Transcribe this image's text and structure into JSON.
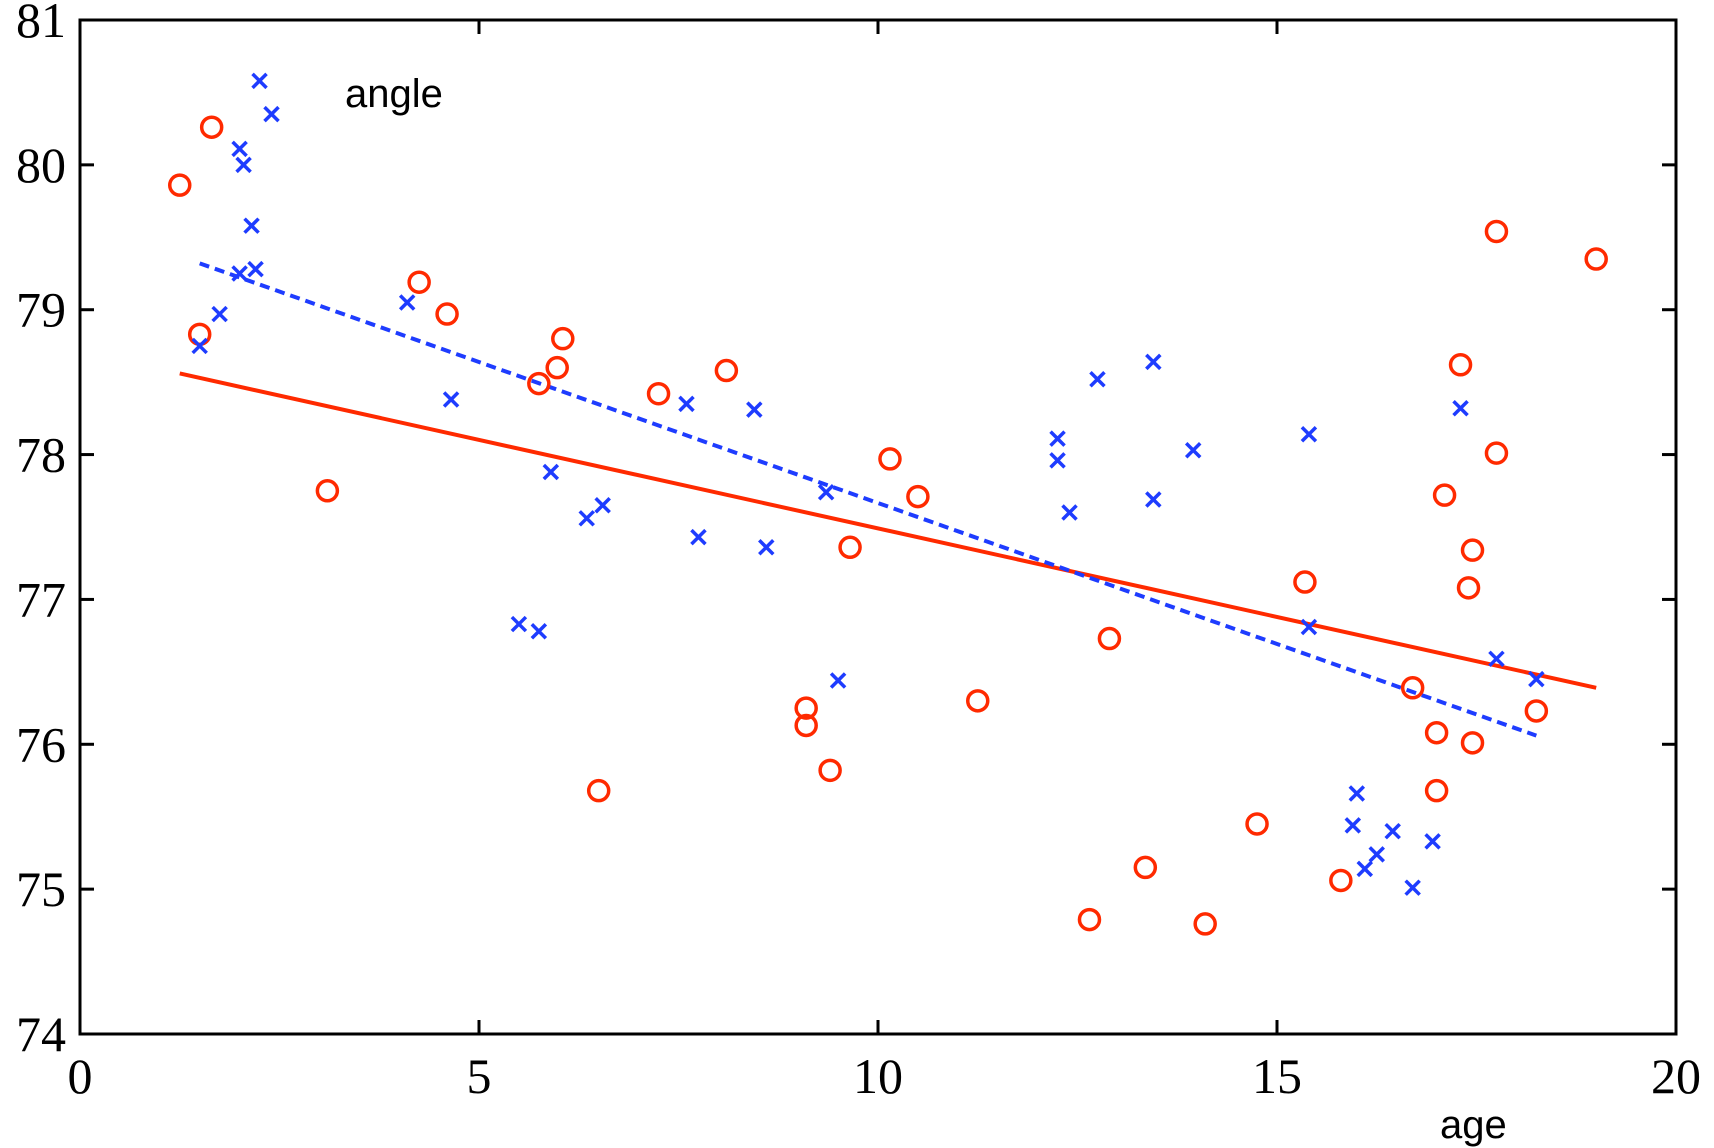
{
  "chart_data": {
    "type": "scatter",
    "title": "",
    "xlabel": "age",
    "ylabel": "angle",
    "xlim": [
      0,
      20
    ],
    "ylim": [
      74,
      81
    ],
    "x_ticks": [
      0,
      5,
      10,
      15,
      20
    ],
    "y_ticks": [
      74,
      75,
      76,
      77,
      78,
      79,
      80,
      81
    ],
    "grid": false,
    "series": [
      {
        "marker": "circle",
        "color": "#ff2a00",
        "points": [
          [
            1.25,
            79.86
          ],
          [
            1.5,
            78.83
          ],
          [
            1.65,
            80.26
          ],
          [
            3.1,
            77.75
          ],
          [
            4.25,
            79.19
          ],
          [
            4.6,
            78.97
          ],
          [
            5.75,
            78.49
          ],
          [
            5.98,
            78.6
          ],
          [
            6.05,
            78.8
          ],
          [
            6.5,
            75.68
          ],
          [
            7.25,
            78.42
          ],
          [
            8.1,
            78.58
          ],
          [
            9.1,
            76.25
          ],
          [
            9.1,
            76.13
          ],
          [
            9.4,
            75.82
          ],
          [
            9.65,
            77.36
          ],
          [
            10.15,
            77.97
          ],
          [
            10.5,
            77.71
          ],
          [
            11.25,
            76.3
          ],
          [
            12.65,
            74.79
          ],
          [
            12.9,
            76.73
          ],
          [
            13.35,
            75.15
          ],
          [
            14.1,
            74.76
          ],
          [
            14.75,
            75.45
          ],
          [
            15.35,
            77.12
          ],
          [
            15.8,
            75.06
          ],
          [
            16.7,
            76.39
          ],
          [
            17.0,
            76.08
          ],
          [
            17.0,
            75.68
          ],
          [
            17.1,
            77.72
          ],
          [
            17.3,
            78.62
          ],
          [
            17.4,
            77.08
          ],
          [
            17.45,
            77.34
          ],
          [
            17.45,
            76.01
          ],
          [
            17.75,
            79.54
          ],
          [
            17.75,
            78.01
          ],
          [
            18.25,
            76.23
          ],
          [
            19.0,
            79.35
          ]
        ]
      },
      {
        "marker": "x",
        "color": "#1e3cff",
        "points": [
          [
            1.5,
            78.75
          ],
          [
            1.75,
            78.97
          ],
          [
            2.0,
            80.11
          ],
          [
            2.0,
            79.25
          ],
          [
            2.05,
            80.0
          ],
          [
            2.15,
            79.58
          ],
          [
            2.2,
            79.28
          ],
          [
            2.25,
            80.58
          ],
          [
            2.4,
            80.35
          ],
          [
            4.1,
            79.05
          ],
          [
            4.65,
            78.38
          ],
          [
            5.5,
            76.83
          ],
          [
            5.75,
            76.78
          ],
          [
            5.9,
            77.88
          ],
          [
            6.35,
            77.56
          ],
          [
            6.55,
            77.65
          ],
          [
            7.6,
            78.35
          ],
          [
            7.75,
            77.43
          ],
          [
            8.45,
            78.31
          ],
          [
            8.6,
            77.36
          ],
          [
            9.35,
            77.74
          ],
          [
            9.5,
            76.44
          ],
          [
            12.25,
            78.11
          ],
          [
            12.25,
            77.96
          ],
          [
            12.4,
            77.6
          ],
          [
            12.75,
            78.52
          ],
          [
            13.45,
            78.64
          ],
          [
            13.45,
            77.69
          ],
          [
            13.95,
            78.03
          ],
          [
            15.4,
            78.14
          ],
          [
            15.4,
            76.81
          ],
          [
            15.95,
            75.44
          ],
          [
            16.0,
            75.66
          ],
          [
            16.1,
            75.14
          ],
          [
            16.25,
            75.24
          ],
          [
            16.45,
            75.4
          ],
          [
            16.7,
            75.01
          ],
          [
            16.95,
            75.33
          ],
          [
            17.3,
            78.32
          ],
          [
            17.75,
            76.59
          ],
          [
            18.25,
            76.45
          ]
        ]
      }
    ],
    "fit_lines": [
      {
        "style": "solid",
        "color": "#ff2a00",
        "x": [
          1.25,
          19.0
        ],
        "y": [
          78.56,
          76.39
        ]
      },
      {
        "style": "dashed",
        "color": "#1e3cff",
        "x": [
          1.5,
          18.25
        ],
        "y": [
          79.32,
          76.06
        ]
      }
    ]
  }
}
